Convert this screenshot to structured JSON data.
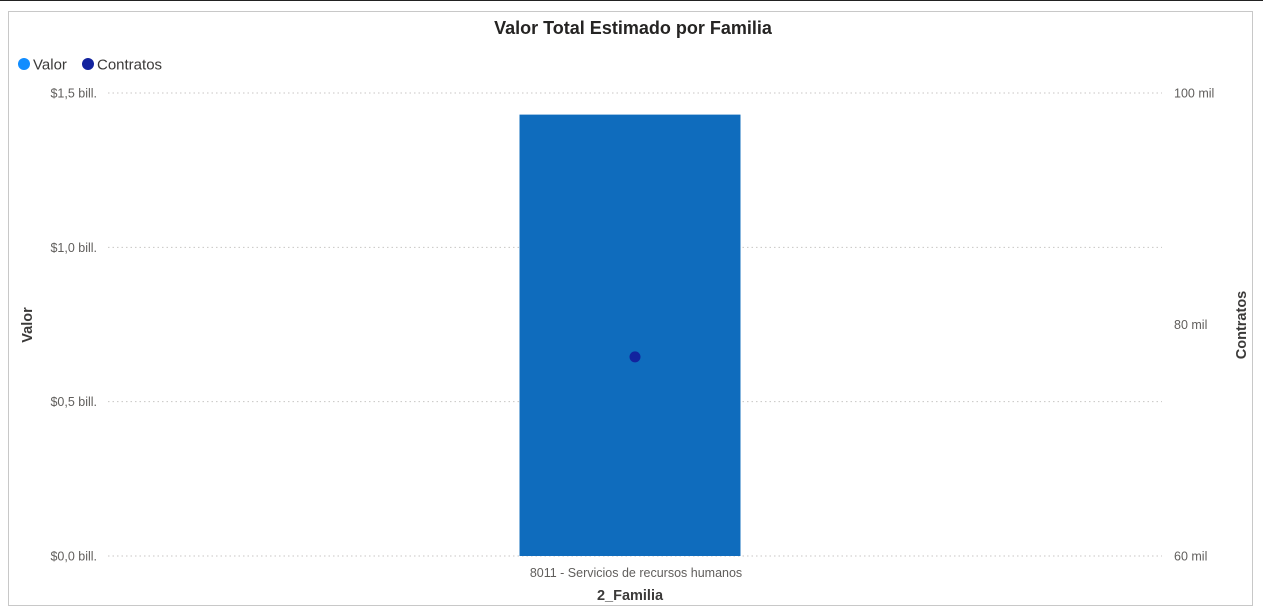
{
  "chart_data": {
    "type": "bar",
    "title": "Valor Total Estimado por Familia",
    "xlabel": "2_Familia",
    "ylabel": "Valor",
    "y2label": "Contratos",
    "categories": [
      "8011 - Servicios de recursos humanos"
    ],
    "series": [
      {
        "name": "Valor",
        "type": "bar",
        "axis": "left",
        "values": [
          1.43
        ],
        "color": "#0F6CBD"
      },
      {
        "name": "Contratos",
        "type": "scatter",
        "axis": "right",
        "values": [
          77200
        ],
        "color": "#12239E"
      }
    ],
    "ylim": [
      0,
      1.5
    ],
    "y2lim": [
      60000,
      100000
    ],
    "yticks": [
      {
        "value": 0,
        "label": "$0,0 bill."
      },
      {
        "value": 0.5,
        "label": "$0,5 bill."
      },
      {
        "value": 1.0,
        "label": "$1,0 bill."
      },
      {
        "value": 1.5,
        "label": "$1,5 bill."
      }
    ],
    "y2ticks": [
      {
        "value": 60000,
        "label": "60 mil"
      },
      {
        "value": 80000,
        "label": "80 mil"
      },
      {
        "value": 100000,
        "label": "100 mil"
      }
    ],
    "legend": {
      "position": "top-left",
      "items": [
        {
          "label": "Valor",
          "color": "#118DFF"
        },
        {
          "label": "Contratos",
          "color": "#12239E"
        }
      ]
    },
    "grid": true
  }
}
